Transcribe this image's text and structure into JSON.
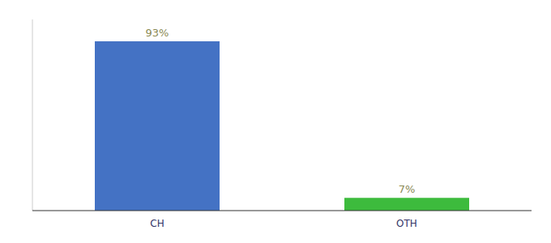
{
  "chart_data": {
    "type": "bar",
    "categories": [
      "CH",
      "OTH"
    ],
    "values": [
      93,
      7
    ],
    "value_labels": [
      "93%",
      "7%"
    ],
    "colors": [
      "#4472c4",
      "#3dbb3d"
    ],
    "ylim": [
      0,
      105
    ],
    "data_labels": true,
    "tick_labels": "x"
  }
}
